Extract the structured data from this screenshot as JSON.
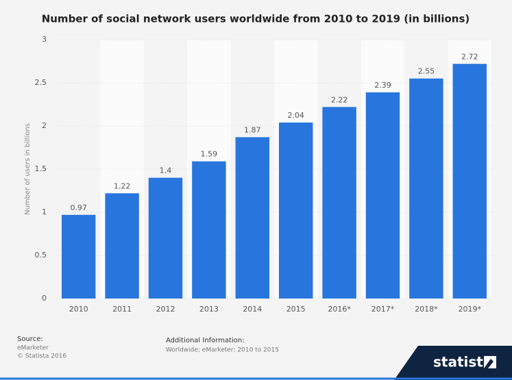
{
  "chart_data": {
    "type": "bar",
    "title": "Number of social network users worldwide from 2010 to 2019 (in billions)",
    "y_label": "Number of users in billions",
    "categories": [
      "2010",
      "2011",
      "2012",
      "2013",
      "2014",
      "2015",
      "2016*",
      "2017*",
      "2018*",
      "2019*"
    ],
    "values": [
      0.97,
      1.22,
      1.4,
      1.59,
      1.87,
      2.04,
      2.22,
      2.39,
      2.55,
      2.72
    ],
    "color": "#2876dd",
    "ylim": [
      0,
      3
    ],
    "yticks": [
      0,
      0.5,
      1,
      1.5,
      2,
      2.5,
      3
    ],
    "grid": true
  },
  "footer": {
    "source_label": "Source:",
    "source_lines": [
      "eMarketer",
      "© Statista 2016"
    ],
    "info_label": "Additional Information:",
    "info_text": "Worldwide; eMarketer; 2010 to 2015",
    "logo": "statista"
  }
}
